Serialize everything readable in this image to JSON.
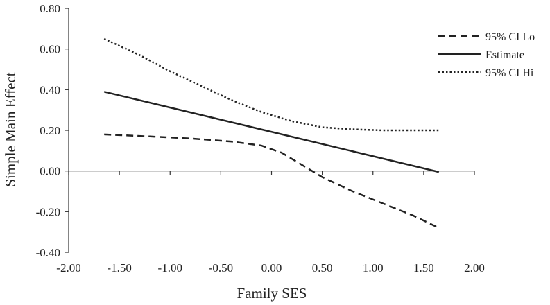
{
  "chart_data": {
    "type": "line",
    "title": "",
    "xlabel": "Family SES",
    "ylabel": "Simple Main Effect",
    "xlim": [
      -2.0,
      2.0
    ],
    "ylim": [
      -0.4,
      0.8
    ],
    "x_ticks": [
      "-2.00",
      "-1.50",
      "-1.00",
      "-0.50",
      "0.00",
      "0.50",
      "1.00",
      "1.50",
      "2.00"
    ],
    "y_ticks": [
      "0.80",
      "0.60",
      "0.40",
      "0.20",
      "0.00",
      "-0.20",
      "-0.40"
    ],
    "grid": false,
    "legend_position": "top-right",
    "series": [
      {
        "name": "95% CI Lo",
        "style": "dashed",
        "x": [
          -1.65,
          -1.2,
          -0.8,
          -0.4,
          -0.1,
          0.1,
          0.3,
          0.5,
          0.8,
          1.1,
          1.4,
          1.65
        ],
        "y": [
          0.18,
          0.17,
          0.16,
          0.145,
          0.125,
          0.09,
          0.03,
          -0.03,
          -0.1,
          -0.16,
          -0.22,
          -0.28
        ]
      },
      {
        "name": "Estimate",
        "style": "solid",
        "x": [
          -1.65,
          1.65
        ],
        "y": [
          0.39,
          -0.005
        ]
      },
      {
        "name": "95% CI Hi",
        "style": "dotted",
        "x": [
          -1.65,
          -1.3,
          -1.0,
          -0.7,
          -0.4,
          -0.1,
          0.2,
          0.5,
          0.8,
          1.1,
          1.4,
          1.65
        ],
        "y": [
          0.65,
          0.57,
          0.49,
          0.42,
          0.35,
          0.29,
          0.245,
          0.215,
          0.205,
          0.2,
          0.2,
          0.2
        ]
      }
    ],
    "colors": {
      "line": "#222222",
      "axis": "#333333"
    }
  }
}
